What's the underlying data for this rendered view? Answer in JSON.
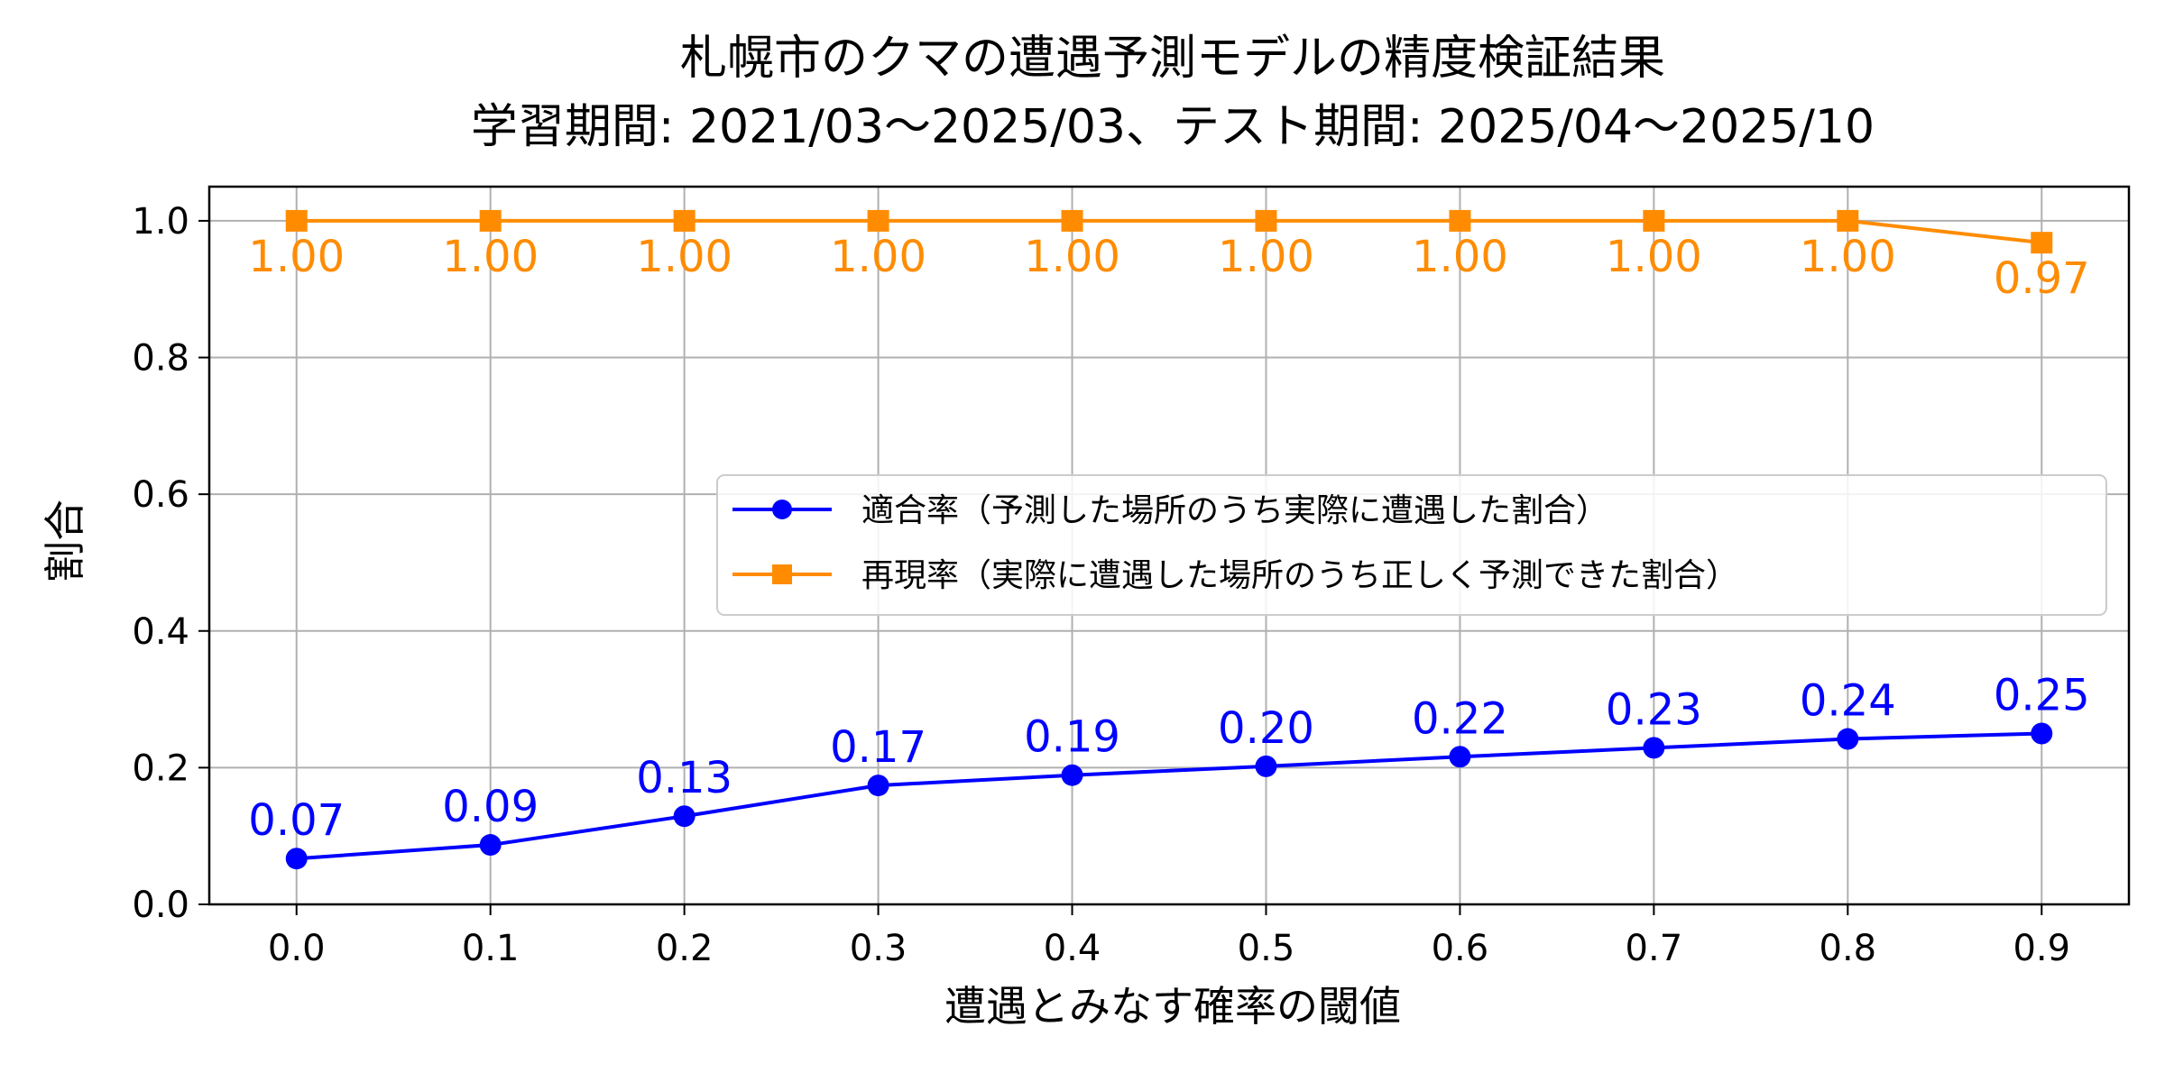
{
  "colors": {
    "precision": "#0000ff",
    "recall": "#ff8c00",
    "grid": "#b0b0b0"
  },
  "chart_data": {
    "type": "line",
    "title": "札幌市のクマの遭遇予測モデルの精度検証結果",
    "subtitle": "学習期間: 2021/03〜2025/03、テスト期間: 2025/04〜2025/10",
    "xlabel": "遭遇とみなす確率の閾値",
    "ylabel": "割合",
    "x": [
      0.0,
      0.1,
      0.2,
      0.3,
      0.4,
      0.5,
      0.6,
      0.7,
      0.8,
      0.9
    ],
    "x_tick_labels": [
      "0.0",
      "0.1",
      "0.2",
      "0.3",
      "0.4",
      "0.5",
      "0.6",
      "0.7",
      "0.8",
      "0.9"
    ],
    "y_tick_labels": [
      "0.0",
      "0.2",
      "0.4",
      "0.6",
      "0.8",
      "1.0"
    ],
    "xlim": [
      -0.045,
      0.945
    ],
    "ylim": [
      0.0,
      1.05
    ],
    "grid": true,
    "legend_position": "center-right",
    "series": [
      {
        "name": "適合率（予測した場所のうち実際に遭遇した割合）",
        "color": "#0000ff",
        "marker": "circle",
        "values": [
          0.067,
          0.087,
          0.129,
          0.174,
          0.189,
          0.202,
          0.216,
          0.229,
          0.242,
          0.25
        ],
        "labels": [
          "0.07",
          "0.09",
          "0.13",
          "0.17",
          "0.19",
          "0.20",
          "0.22",
          "0.23",
          "0.24",
          "0.25"
        ]
      },
      {
        "name": "再現率（実際に遭遇した場所のうち正しく予測できた割合）",
        "color": "#ff8c00",
        "marker": "square",
        "values": [
          1.0,
          1.0,
          1.0,
          1.0,
          1.0,
          1.0,
          1.0,
          1.0,
          1.0,
          0.968
        ],
        "labels": [
          "1.00",
          "1.00",
          "1.00",
          "1.00",
          "1.00",
          "1.00",
          "1.00",
          "1.00",
          "1.00",
          "0.97"
        ]
      }
    ]
  }
}
